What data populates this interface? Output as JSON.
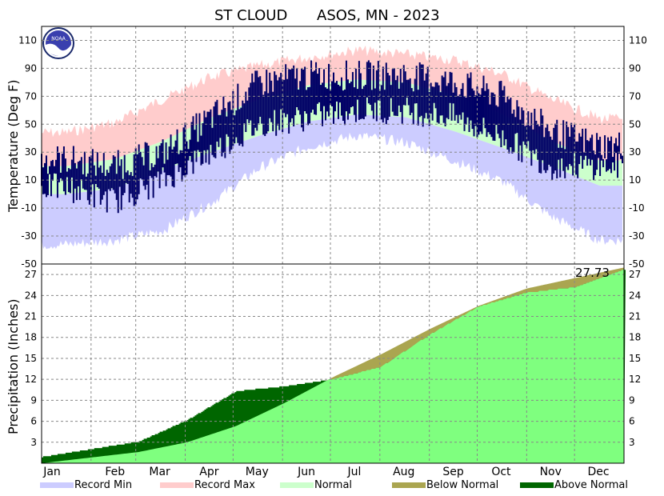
{
  "header": {
    "title_station": "ST CLOUD",
    "title_rest": "ASOS, MN - 2023"
  },
  "colors": {
    "record_min": "#ccccff",
    "record_max": "#ffcccc",
    "normal": "#ccffcc",
    "observed_temp": "#000066",
    "below_normal": "#aaa550",
    "above_normal": "#006600",
    "observed_precip_fill": "#7fff7f"
  },
  "chart_data": [
    {
      "type": "area",
      "name": "temperature",
      "ylabel": "Temperature (Deg F)",
      "ylim": [
        -50,
        120
      ],
      "yticks": [
        110,
        90,
        70,
        50,
        30,
        10,
        -10,
        -30,
        -50
      ],
      "x_months": [
        "Jan",
        "Feb",
        "Mar",
        "Apr",
        "May",
        "Jun",
        "Jul",
        "Aug",
        "Sep",
        "Oct",
        "Nov",
        "Dec"
      ],
      "grid": true,
      "series_monthly": {
        "record_max": [
          48,
          55,
          72,
          88,
          96,
          102,
          107,
          104,
          100,
          90,
          72,
          58
        ],
        "normal_high": [
          20,
          25,
          38,
          55,
          68,
          78,
          82,
          80,
          71,
          57,
          38,
          24
        ],
        "normal_low": [
          0,
          4,
          17,
          30,
          42,
          52,
          57,
          55,
          45,
          33,
          20,
          6
        ],
        "record_min": [
          -40,
          -37,
          -30,
          -10,
          15,
          30,
          38,
          33,
          20,
          5,
          -20,
          -37
        ],
        "observed_high": [
          25,
          20,
          30,
          55,
          80,
          85,
          85,
          85,
          80,
          70,
          45,
          35
        ],
        "observed_low": [
          5,
          -5,
          10,
          30,
          50,
          55,
          60,
          60,
          55,
          40,
          20,
          20
        ]
      }
    },
    {
      "type": "area",
      "name": "precipitation",
      "ylabel": "Precipitation (Inches)",
      "ylim": [
        0,
        28.5
      ],
      "yticks": [
        27,
        24,
        21,
        18,
        15,
        12,
        9,
        6,
        3
      ],
      "x_months": [
        "Jan",
        "Feb",
        "Mar",
        "Apr",
        "May",
        "Jun",
        "Jul",
        "Aug",
        "Sep",
        "Oct",
        "Nov",
        "Dec"
      ],
      "grid": true,
      "total_label": "27.73",
      "series_monthly_cumulative": {
        "observed": [
          0.9,
          2.0,
          3.1,
          6.2,
          10.3,
          11.0,
          12.0,
          13.8,
          18.4,
          22.4,
          24.4,
          25.2,
          27.73
        ],
        "normal": [
          0.0,
          0.8,
          1.6,
          3.0,
          5.3,
          8.6,
          12.3,
          15.6,
          19.2,
          22.5,
          25.0,
          26.5,
          28.0
        ]
      }
    }
  ],
  "legend": [
    {
      "label": "Record Min",
      "color_key": "record_min"
    },
    {
      "label": "Record Max",
      "color_key": "record_max"
    },
    {
      "label": "Normal",
      "color_key": "normal"
    },
    {
      "label": "Below Normal",
      "color_key": "below_normal"
    },
    {
      "label": "Above Normal",
      "color_key": "above_normal"
    }
  ],
  "logo": {
    "text": "NOAA"
  }
}
